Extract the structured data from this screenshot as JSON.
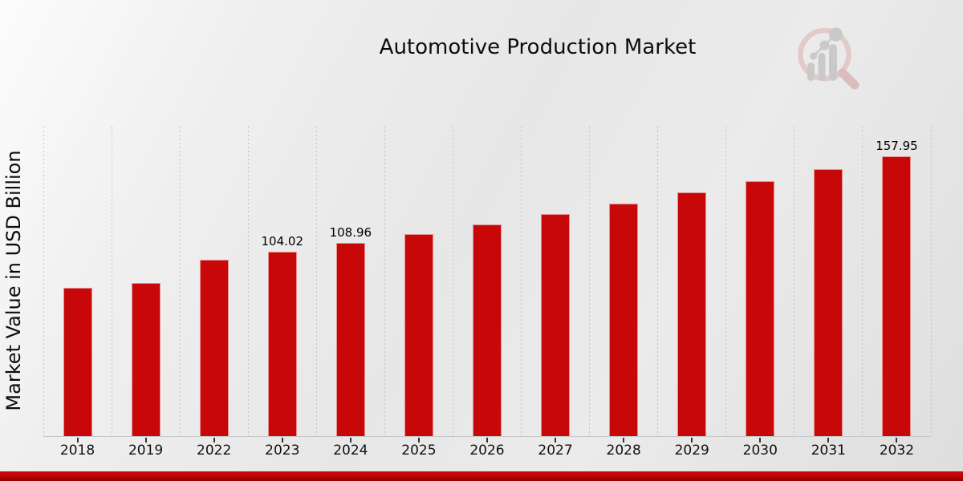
{
  "header": {
    "title": "Automotive Production Market"
  },
  "watermark": {
    "name": "magnifier-bar-chart-logo",
    "circle_color": "#e3cac9",
    "handle_color": "#dcbcbb",
    "bars_color": "#c9c9c9"
  },
  "chart_data": {
    "type": "bar",
    "title": "Automotive Production Market",
    "xlabel": "",
    "ylabel": "Market Value in USD Billion",
    "categories": [
      "2018",
      "2019",
      "2022",
      "2023",
      "2024",
      "2025",
      "2026",
      "2027",
      "2028",
      "2029",
      "2030",
      "2031",
      "2032"
    ],
    "values": [
      83.6,
      86.6,
      99.3,
      104.02,
      108.96,
      114.14,
      119.56,
      125.24,
      131.19,
      137.42,
      143.95,
      150.78,
      157.95
    ],
    "data_labels": [
      "",
      "",
      "",
      "104.02",
      "108.96",
      "",
      "",
      "",
      "",
      "",
      "",
      "",
      "157.95"
    ],
    "ylim": [
      0,
      174.6
    ],
    "bar_color": "#c80808",
    "grid": "vertical-dashed",
    "legend": "none",
    "accent_banner_color": "#c50505"
  }
}
